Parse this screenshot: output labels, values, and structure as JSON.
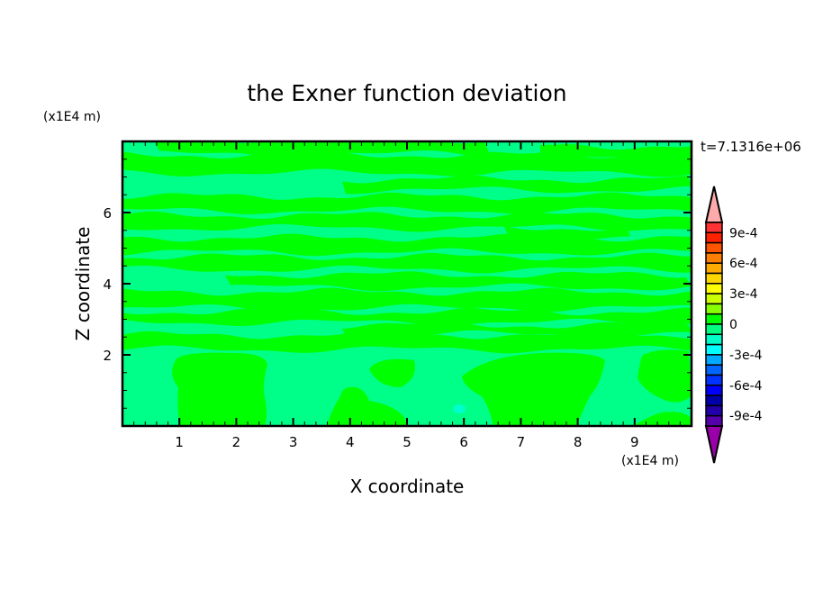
{
  "chart_data": {
    "type": "heatmap",
    "subtype": "filled-contour",
    "title": "the Exner function deviation",
    "xlabel": "X coordinate",
    "ylabel": "Z coordinate",
    "x_unit": "(x1E4 m)",
    "y_unit": "(x1E4 m)",
    "time_label": "t=7.1316e+06",
    "xlim": [
      0,
      10
    ],
    "ylim": [
      0,
      8
    ],
    "x_ticks": [
      "1",
      "2",
      "3",
      "4",
      "5",
      "6",
      "7",
      "8",
      "9"
    ],
    "y_ticks": [
      "2",
      "4",
      "6"
    ],
    "x_tick_values": [
      1,
      2,
      3,
      4,
      5,
      6,
      7,
      8,
      9
    ],
    "y_tick_values": [
      2,
      4,
      6
    ],
    "grid": false,
    "field_note_levels_present": [
      "0 to 1e-4",
      "-1e-4 to 0",
      "-3e-4 to -2e-4"
    ],
    "colorbar": {
      "min": -0.001,
      "max": 0.001,
      "step": 0.0001,
      "extend": "both",
      "labels": [
        "9e-4",
        "6e-4",
        "3e-4",
        "0",
        "-3e-4",
        "-6e-4",
        "-9e-4"
      ],
      "label_values": [
        0.0009,
        0.0006,
        0.0003,
        0,
        -0.0003,
        -0.0006,
        -0.0009
      ],
      "colors_top_to_bottom": [
        "#ff3333",
        "#ff2200",
        "#ff5500",
        "#ff7f00",
        "#ffaa00",
        "#ffd700",
        "#ffff00",
        "#ccff00",
        "#88ff00",
        "#00ff00",
        "#00ff80",
        "#00ffc8",
        "#00ffff",
        "#00aaff",
        "#0066ff",
        "#0033ff",
        "#0000ff",
        "#0000aa",
        "#2200aa",
        "#5500aa"
      ],
      "over_color": "#ffaaaa",
      "under_color": "#9900aa"
    },
    "colors": {
      "positive_small": "#00ff00",
      "negative_small": "#00ff88",
      "negative_mid": "#00ffcc"
    }
  }
}
